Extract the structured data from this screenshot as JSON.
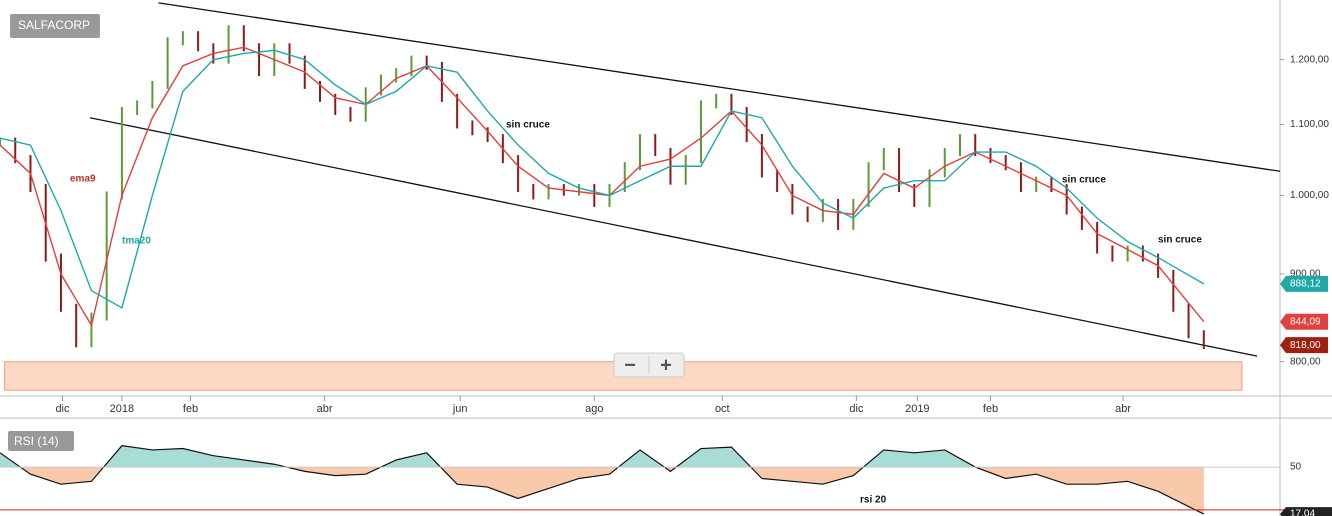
{
  "chart_data": [
    {
      "type": "price",
      "symbol": "SALFACORP",
      "log": true,
      "xlim": [
        0,
        84
      ],
      "ylim": [
        764,
        1300
      ],
      "yticks": [
        {
          "value": 1200,
          "label": "1.200,00"
        },
        {
          "value": 1100,
          "label": "1.100,00"
        },
        {
          "value": 1000,
          "label": "1.000,00"
        },
        {
          "value": 900,
          "label": "900,00"
        },
        {
          "value": 800,
          "label": "800,00"
        }
      ],
      "xticks": [
        {
          "value": 4.1,
          "label": "dic"
        },
        {
          "value": 8,
          "label": "2018"
        },
        {
          "value": 12.5,
          "label": "feb"
        },
        {
          "value": 21.3,
          "label": "abr"
        },
        {
          "value": 30.2,
          "label": "jun"
        },
        {
          "value": 39,
          "label": "ago"
        },
        {
          "value": 47.4,
          "label": "oct"
        },
        {
          "value": 56.2,
          "label": "dic"
        },
        {
          "value": 60.2,
          "label": "2019"
        },
        {
          "value": 65,
          "label": "feb"
        },
        {
          "value": 73.7,
          "label": "abr"
        }
      ],
      "series": [
        {
          "name": "SALFACORP",
          "up_color": "#5e9a3a",
          "down_color": "#8b1a1a",
          "x": [
            0,
            1,
            2,
            3,
            4,
            5,
            6,
            7,
            8,
            9,
            10,
            11,
            12,
            13,
            14,
            15,
            16,
            17,
            18,
            19,
            20,
            21,
            22,
            23,
            24,
            25,
            26,
            27,
            28,
            29,
            30,
            31,
            32,
            33,
            34,
            35,
            36,
            37,
            38,
            39,
            40,
            41,
            42,
            43,
            44,
            45,
            46,
            47,
            48,
            49,
            50,
            51,
            52,
            53,
            54,
            55,
            56,
            57,
            58,
            59,
            60,
            61,
            62,
            63,
            64,
            65,
            66,
            67,
            68,
            69,
            70,
            71,
            72,
            73,
            74,
            75,
            76,
            77,
            78,
            79
          ],
          "values": [
            1075,
            1050,
            1010,
            920,
            860,
            820,
            850,
            1000,
            1120,
            1130,
            1160,
            1230,
            1240,
            1220,
            1200,
            1250,
            1220,
            1180,
            1220,
            1200,
            1160,
            1140,
            1120,
            1110,
            1150,
            1170,
            1180,
            1200,
            1190,
            1140,
            1100,
            1090,
            1080,
            1050,
            1010,
            1000,
            1010,
            1005,
            1010,
            990,
            1010,
            1040,
            1080,
            1060,
            1020,
            1050,
            1130,
            1140,
            1120,
            1080,
            1030,
            1010,
            980,
            970,
            990,
            960,
            990,
            1040,
            1060,
            1010,
            990,
            1030,
            1060,
            1080,
            1060,
            1050,
            1040,
            1010,
            1020,
            1010,
            980,
            960,
            930,
            920,
            930,
            920,
            900,
            860,
            830,
            818
          ]
        },
        {
          "name": "ema9",
          "color": "#e04040",
          "x": [
            0,
            2,
            4,
            6,
            8,
            10,
            12,
            14,
            16,
            18,
            20,
            22,
            24,
            26,
            28,
            30,
            32,
            34,
            36,
            38,
            40,
            42,
            44,
            46,
            48,
            50,
            52,
            54,
            56,
            58,
            60,
            62,
            64,
            66,
            68,
            70,
            72,
            74,
            76,
            79
          ],
          "values": [
            1070,
            1030,
            900,
            840,
            1000,
            1110,
            1190,
            1210,
            1220,
            1200,
            1180,
            1140,
            1130,
            1170,
            1190,
            1140,
            1090,
            1040,
            1010,
            1005,
            1000,
            1040,
            1050,
            1080,
            1120,
            1070,
            1000,
            980,
            975,
            1030,
            1010,
            1040,
            1060,
            1040,
            1020,
            1000,
            950,
            930,
            910,
            844.09
          ]
        },
        {
          "name": "tma20",
          "color": "#20a8a8",
          "x": [
            0,
            2,
            4,
            6,
            8,
            10,
            12,
            14,
            16,
            18,
            20,
            22,
            24,
            26,
            28,
            30,
            32,
            34,
            36,
            38,
            40,
            42,
            44,
            46,
            48,
            50,
            52,
            54,
            56,
            58,
            60,
            62,
            64,
            66,
            68,
            70,
            72,
            74,
            76,
            79
          ],
          "values": [
            1080,
            1070,
            980,
            880,
            860,
            1000,
            1150,
            1200,
            1210,
            1215,
            1200,
            1160,
            1130,
            1150,
            1190,
            1180,
            1120,
            1070,
            1030,
            1010,
            1000,
            1020,
            1040,
            1040,
            1120,
            1110,
            1040,
            990,
            970,
            1010,
            1020,
            1020,
            1060,
            1060,
            1040,
            1010,
            970,
            940,
            920,
            888.12
          ]
        }
      ],
      "last_labels": [
        {
          "value": 888.12,
          "label": "888,12",
          "color": "#20a8a8"
        },
        {
          "value": 844.09,
          "label": "844,09",
          "color": "#e04040"
        },
        {
          "value": 818,
          "label": "818,00",
          "color": "#a02010"
        }
      ],
      "trendlines": [
        {
          "x": [
            10.4,
            84
          ],
          "y": [
            1295,
            1033
          ]
        },
        {
          "x": [
            5.9,
            82.5
          ],
          "y": [
            1110,
            806
          ]
        }
      ],
      "zone": {
        "x": [
          0.3,
          81.5
        ],
        "y": [
          770,
          800
        ],
        "color": "#fbd9c4"
      },
      "annotations": [
        "sin cruce",
        "sin cruce",
        "sin cruce",
        "ema9",
        "tma20"
      ]
    },
    {
      "type": "line",
      "title": "RSI (14)",
      "xlim": [
        0,
        84
      ],
      "ylim": [
        15.7,
        83
      ],
      "yticks": [
        50
      ],
      "hline": 20,
      "color": "#111",
      "above_color": "#a8dcd6",
      "below_color": "#f9c9ab",
      "x": [
        0,
        2,
        4,
        6,
        8,
        10,
        12,
        14,
        16,
        18,
        20,
        22,
        24,
        26,
        28,
        30,
        32,
        34,
        36,
        38,
        40,
        42,
        44,
        46,
        48,
        50,
        52,
        54,
        56,
        58,
        60,
        62,
        64,
        66,
        68,
        70,
        72,
        74,
        76,
        79
      ],
      "values": [
        60,
        45,
        38,
        40,
        65,
        62,
        63,
        58,
        55,
        52,
        47,
        44,
        45,
        55,
        60,
        38,
        36,
        28,
        35,
        42,
        45,
        62,
        47,
        63,
        64,
        42,
        40,
        38,
        44,
        62,
        60,
        62,
        50,
        42,
        45,
        38,
        38,
        40,
        33,
        17.04
      ],
      "last_label": {
        "value": 17.04,
        "label": "17,04"
      },
      "annotation": "rsi 20"
    }
  ]
}
